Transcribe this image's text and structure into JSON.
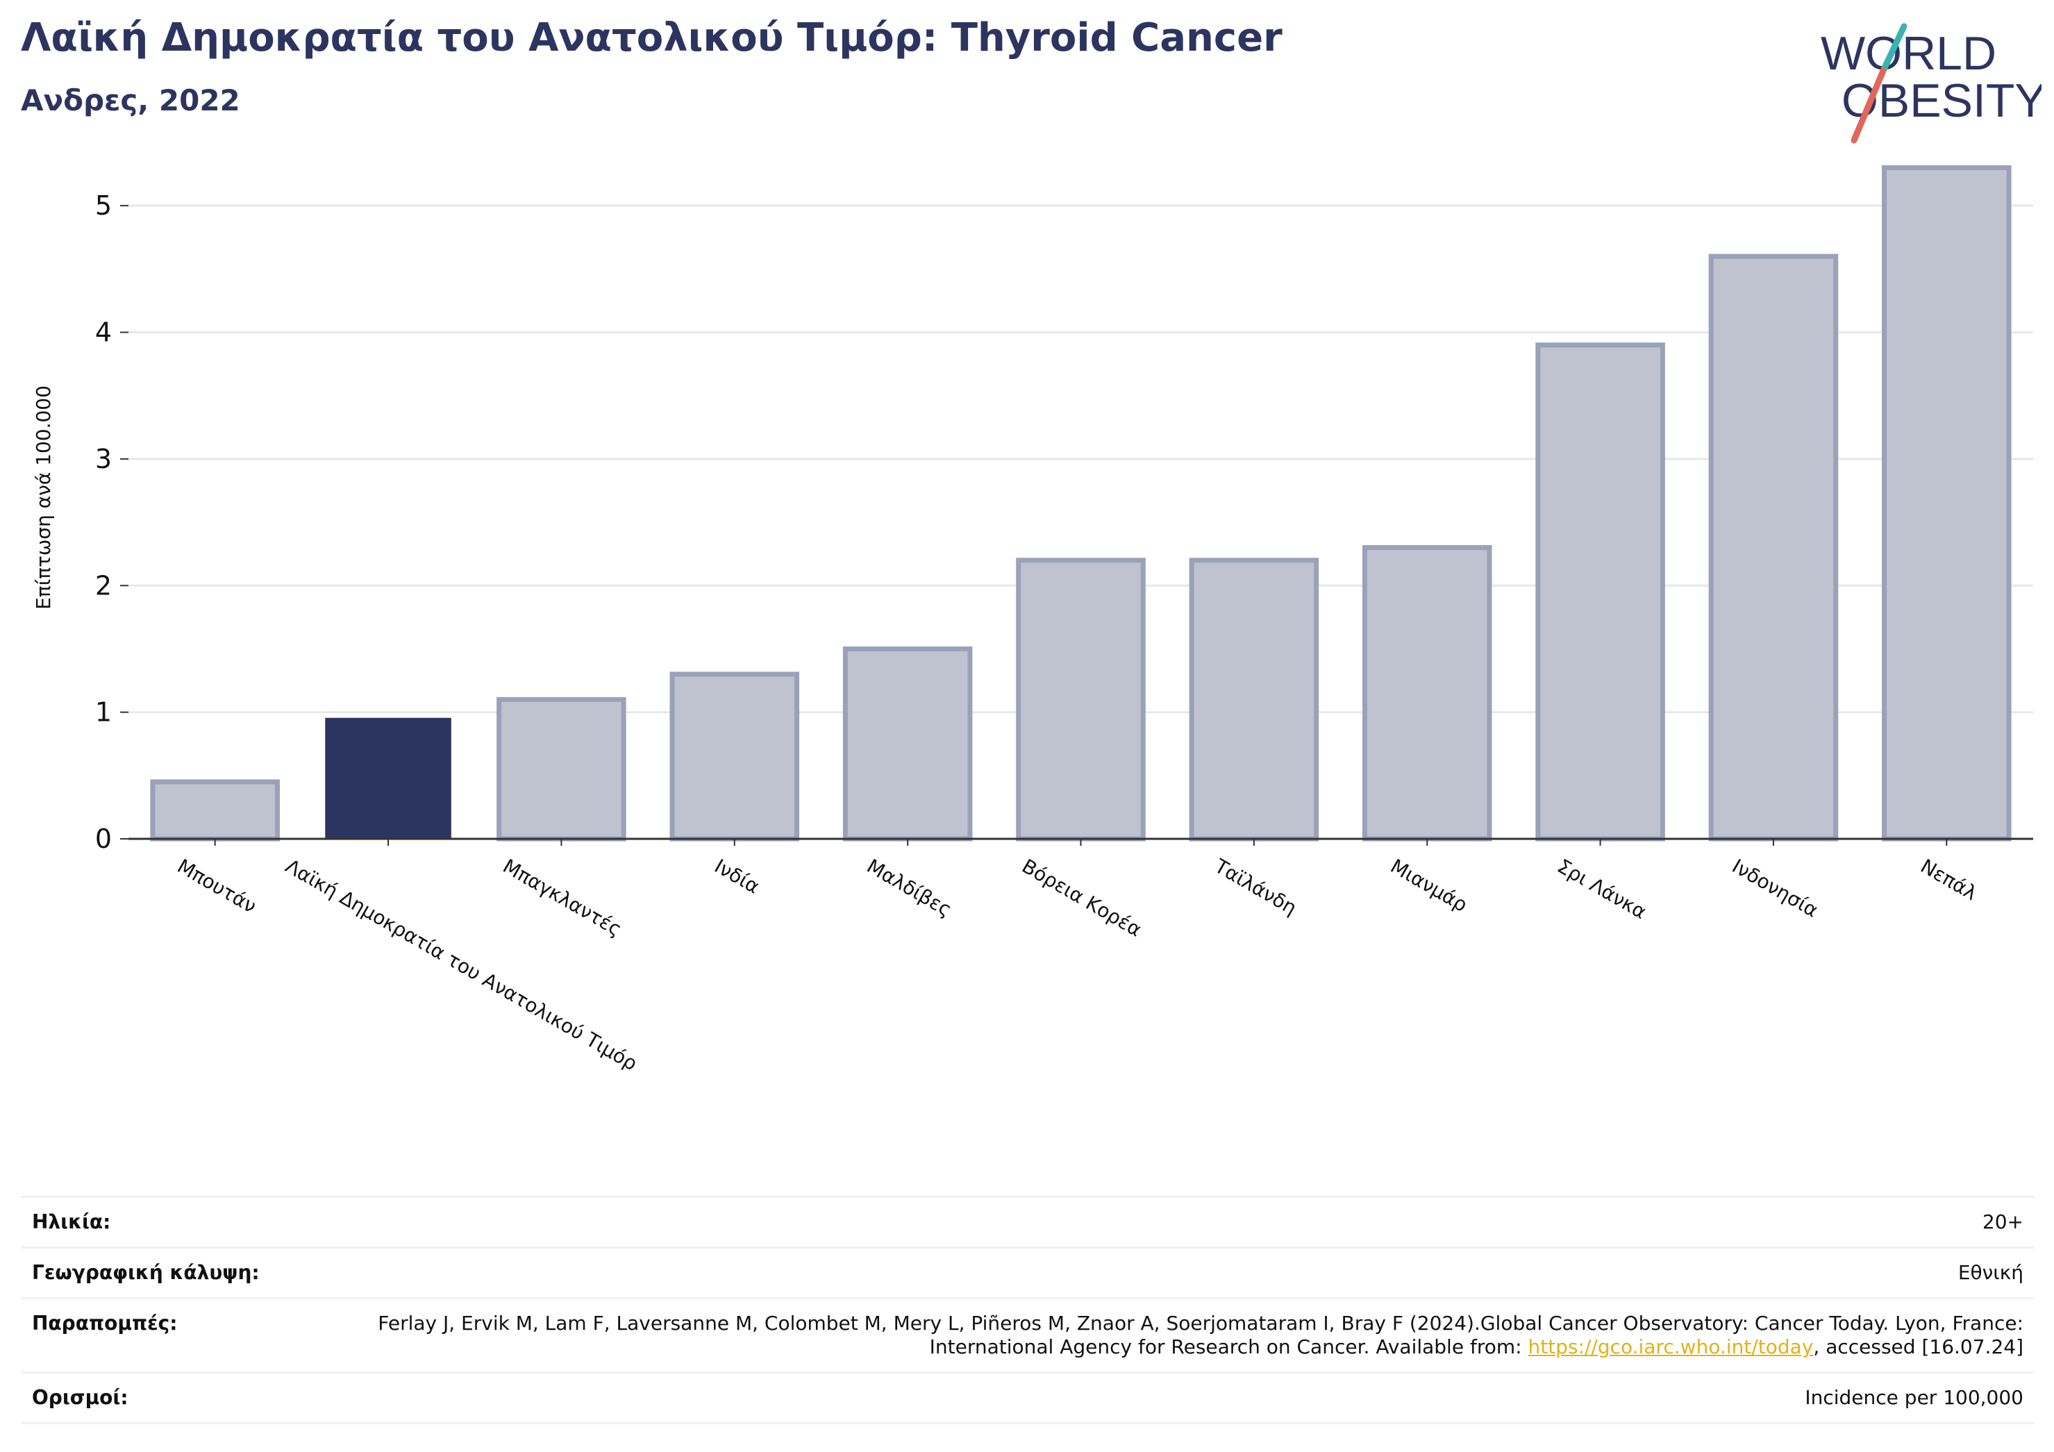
{
  "header": {
    "title": "Λαϊκή Δημοκρατία του Ανατολικού Τιμόρ: Thyroid Cancer",
    "subtitle": "Ανδρες, 2022"
  },
  "logo": {
    "line1": "WORLD",
    "line2": "OBESITY",
    "accent_colors": [
      "#3bb3b0",
      "#e0675a"
    ]
  },
  "chart_data": {
    "type": "bar",
    "categories": [
      "Μπουτάν",
      "Λαϊκή Δημοκρατία του Ανατολικού Τιμόρ",
      "Μπαγκλαντές",
      "Ινδία",
      "Μαλδίβες",
      "Βόρεια Κορέα",
      "Ταϊλάνδη",
      "Μιανμάρ",
      "Σρι Λάνκα",
      "Ινδονησία",
      "Νεπάλ"
    ],
    "values": [
      0.45,
      0.95,
      1.1,
      1.3,
      1.5,
      2.2,
      2.2,
      2.3,
      3.9,
      4.6,
      5.3
    ],
    "highlight_index": 1,
    "ylabel": "Επίπτωση ανά 100.000",
    "ylim": [
      0,
      5.5
    ],
    "yticks": [
      0,
      1,
      2,
      3,
      4,
      5
    ],
    "grid": true,
    "colors": {
      "highlight": "#2c3560",
      "bar_fill": "#bfc3d0",
      "bar_stroke": "#9aa1b8"
    }
  },
  "meta": {
    "age_label": "Ηλικία:",
    "age_value": "20+",
    "coverage_label": "Γεωγραφική κάλυψη:",
    "coverage_value": "Εθνική",
    "refs_label": "Παραπομπές:",
    "refs_text_1": "Ferlay J, Ervik M, Lam F, Laversanne M, Colombet M, Mery L, Piñeros M, Znaor A, Soerjomataram I, Bray F (2024).Global Cancer Observatory: Cancer Today. Lyon, France: International Agency for Research on Cancer. Available from: ",
    "refs_link": "https://gco.iarc.who.int/today",
    "refs_text_2": ", accessed [16.07.24]",
    "defs_label": "Ορισμοί:",
    "defs_value": "Incidence per 100,000"
  }
}
